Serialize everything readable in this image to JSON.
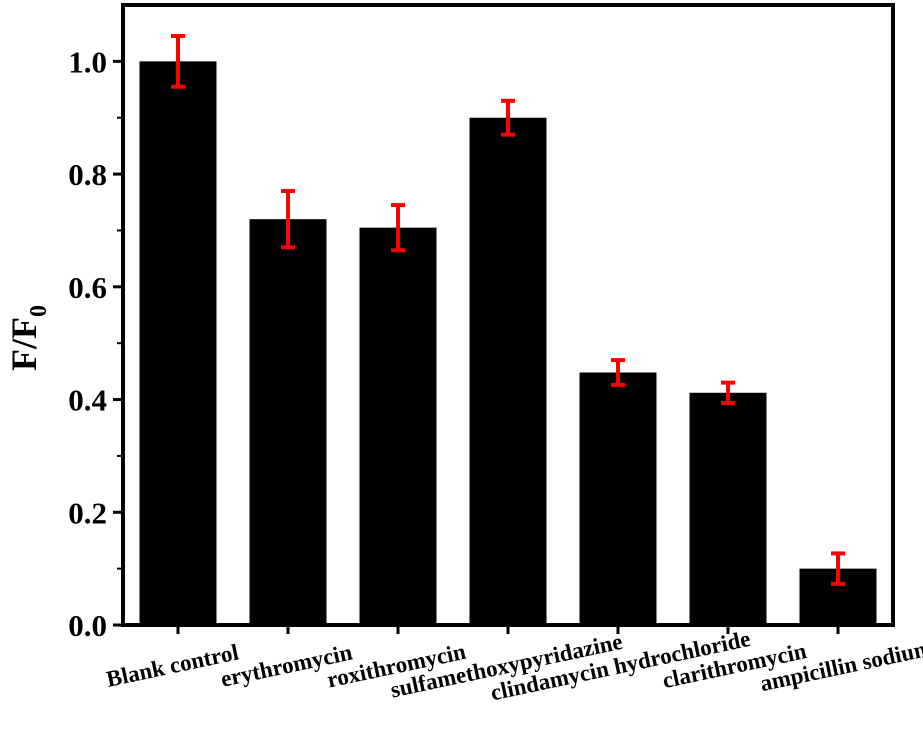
{
  "chart_data": {
    "type": "bar",
    "title": "",
    "xlabel": "",
    "ylabel": "F/F",
    "ylabel_subscript": "0",
    "categories": [
      "Blank control",
      "erythromycin",
      "roxithromycin",
      "sulfamethoxypyridazine",
      "clindamycin hydrochloride",
      "clarithromycin",
      "ampicillin sodium"
    ],
    "values": [
      1.0,
      0.72,
      0.705,
      0.9,
      0.448,
      0.412,
      0.1
    ],
    "errors": [
      0.045,
      0.05,
      0.04,
      0.03,
      0.022,
      0.018,
      0.027
    ],
    "ylim": [
      0,
      1.1
    ],
    "yticks": [
      0.0,
      0.2,
      0.4,
      0.6,
      0.8,
      1.0
    ],
    "ytick_labels": [
      "0.0",
      "0.2",
      "0.4",
      "0.6",
      "0.8",
      "1.0"
    ],
    "grid": false,
    "colors": {
      "bar": "#000000",
      "error_bar": "#ff0000",
      "axis": "#000000"
    }
  }
}
